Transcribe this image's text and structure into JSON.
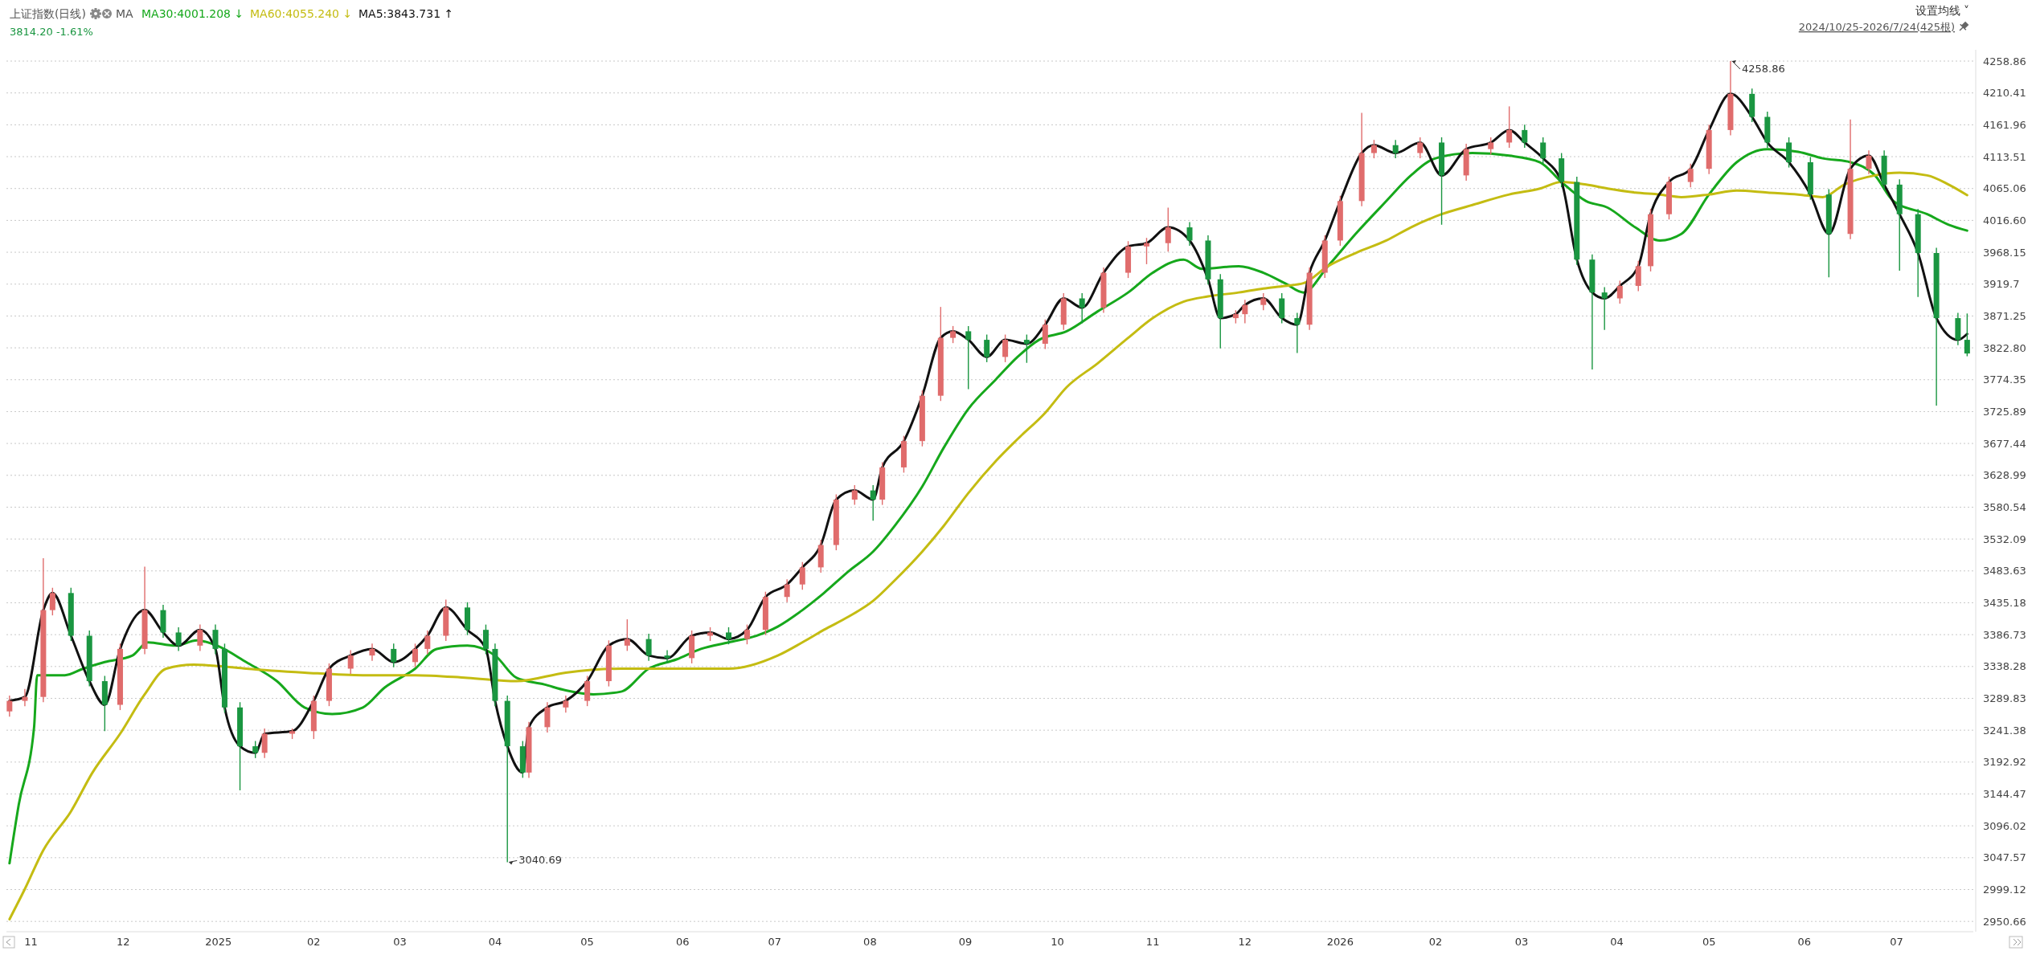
{
  "chart_data": {
    "type": "candlestick",
    "title": "上证指数(日线)",
    "subtitle": "3814.20 -1.61%",
    "annotations": [
      "MA",
      "设置均线 ˅",
      "2024/10/25-2026/7/24(425根)",
      {
        "text": "4258.86",
        "x": "2026-05-08",
        "y": 4258.86
      },
      {
        "text": "3040.69",
        "x": "2025-04-05",
        "y": 3040.69
      }
    ],
    "legend": "top left",
    "grid": "y",
    "xlim": [
      "2024-10-24",
      "2026-07-26"
    ],
    "xticks": [
      {
        "value": "2024-11-01",
        "label": "11"
      },
      {
        "value": "2024-12-01",
        "label": "12"
      },
      {
        "value": "2025-01-01",
        "label": "2025"
      },
      {
        "value": "2025-02-01",
        "label": "02"
      },
      {
        "value": "2025-03-01",
        "label": "03"
      },
      {
        "value": "2025-04-01",
        "label": "04"
      },
      {
        "value": "2025-05-01",
        "label": "05"
      },
      {
        "value": "2025-06-01",
        "label": "06"
      },
      {
        "value": "2025-07-01",
        "label": "07"
      },
      {
        "value": "2025-08-01",
        "label": "08"
      },
      {
        "value": "2025-09-01",
        "label": "09"
      },
      {
        "value": "2025-10-01",
        "label": "10"
      },
      {
        "value": "2025-11-01",
        "label": "11"
      },
      {
        "value": "2025-12-01",
        "label": "12"
      },
      {
        "value": "2026-01-01",
        "label": "2026"
      },
      {
        "value": "2026-02-01",
        "label": "02"
      },
      {
        "value": "2026-03-01",
        "label": "03"
      },
      {
        "value": "2026-04-01",
        "label": "04"
      },
      {
        "value": "2026-05-01",
        "label": "05"
      },
      {
        "value": "2026-06-01",
        "label": "06"
      },
      {
        "value": "2026-07-01",
        "label": "07"
      }
    ],
    "ylim": [
      2935,
      4276
    ],
    "yticks": [
      2950.66,
      2999.12,
      3047.57,
      3096.02,
      3144.47,
      3192.92,
      3241.38,
      3289.83,
      3338.28,
      3386.73,
      3435.18,
      3483.63,
      3532.09,
      3580.54,
      3628.99,
      3677.44,
      3725.89,
      3774.35,
      {
        "value": 3822.8,
        "label": "3822.80"
      },
      3871.25,
      3919.7,
      3968.15,
      {
        "value": 4016.6,
        "label": "4016.60"
      },
      4065.06,
      4113.51,
      4161.96,
      4210.41,
      4258.86
    ],
    "series": [
      {
        "x": [
          "2024-10-25",
          "2024-10-30",
          "2024-11-05",
          "2024-11-08",
          "2024-11-14",
          "2024-11-20",
          "2024-11-25",
          "2024-11-30",
          "2024-12-08",
          "2024-12-14",
          "2024-12-19",
          "2024-12-26",
          "2024-12-31",
          "2025-01-03",
          "2025-01-08",
          "2025-01-13",
          "2025-01-16",
          "2025-01-25",
          "2025-02-01",
          "2025-02-06",
          "2025-02-13",
          "2025-02-20",
          "2025-02-27",
          "2025-03-06",
          "2025-03-10",
          "2025-03-16",
          "2025-03-23",
          "2025-03-29",
          "2025-04-01",
          "2025-04-05",
          "2025-04-10",
          "2025-04-12",
          "2025-04-18",
          "2025-04-24",
          "2025-05-01",
          "2025-05-08",
          "2025-05-14",
          "2025-05-21",
          "2025-05-27",
          "2025-06-04",
          "2025-06-10",
          "2025-06-16",
          "2025-06-22",
          "2025-06-28",
          "2025-07-05",
          "2025-07-10",
          "2025-07-16",
          "2025-07-21",
          "2025-07-27",
          "2025-08-02",
          "2025-08-05",
          "2025-08-12",
          "2025-08-18",
          "2025-08-24",
          "2025-08-28",
          "2025-09-02",
          "2025-09-08",
          "2025-09-14",
          "2025-09-21",
          "2025-09-27",
          "2025-10-03",
          "2025-10-09",
          "2025-10-16",
          "2025-10-24",
          "2025-10-30",
          "2025-11-06",
          "2025-11-13",
          "2025-11-19",
          "2025-11-23",
          "2025-11-28",
          "2025-12-01",
          "2025-12-07",
          "2025-12-13",
          "2025-12-18",
          "2025-12-22",
          "2025-12-27",
          "2026-01-01",
          "2026-01-08",
          "2026-01-12",
          "2026-01-19",
          "2026-01-27",
          "2026-02-03",
          "2026-02-11",
          "2026-02-19",
          "2026-02-25",
          "2026-03-02",
          "2026-03-08",
          "2026-03-14",
          "2026-03-19",
          "2026-03-24",
          "2026-03-28",
          "2026-04-02",
          "2026-04-08",
          "2026-04-12",
          "2026-04-18",
          "2026-04-25",
          "2026-05-01",
          "2026-05-08",
          "2026-05-15",
          "2026-05-20",
          "2026-05-27",
          "2026-06-03",
          "2026-06-09",
          "2026-06-16",
          "2026-06-22",
          "2026-06-27",
          "2026-07-02",
          "2026-07-08",
          "2026-07-14",
          "2026-07-21",
          "2026-07-24"
        ],
        "ohlc": [
          [
            3270,
            3294,
            3262,
            3286
          ],
          [
            3286,
            3304,
            3278,
            3292
          ],
          [
            3292,
            3503,
            3284,
            3424
          ],
          [
            3424,
            3458,
            3416,
            3450
          ],
          [
            3450,
            3458,
            3377,
            3385
          ],
          [
            3385,
            3393,
            3308,
            3316
          ],
          [
            3316,
            3324,
            3240,
            3280
          ],
          [
            3280,
            3373,
            3272,
            3365
          ],
          [
            3365,
            3490,
            3357,
            3424
          ],
          [
            3424,
            3432,
            3382,
            3390
          ],
          [
            3390,
            3398,
            3362,
            3370
          ],
          [
            3370,
            3402,
            3362,
            3394
          ],
          [
            3394,
            3402,
            3357,
            3365
          ],
          [
            3365,
            3373,
            3268,
            3276
          ],
          [
            3276,
            3284,
            3150,
            3217
          ],
          [
            3217,
            3225,
            3199,
            3207
          ],
          [
            3207,
            3244,
            3199,
            3236
          ],
          [
            3236,
            3244,
            3228,
            3240
          ],
          [
            3240,
            3294,
            3228,
            3286
          ],
          [
            3286,
            3343,
            3278,
            3335
          ],
          [
            3335,
            3363,
            3327,
            3355
          ],
          [
            3355,
            3373,
            3347,
            3365
          ],
          [
            3365,
            3373,
            3337,
            3345
          ],
          [
            3345,
            3373,
            3337,
            3365
          ],
          [
            3365,
            3393,
            3357,
            3385
          ],
          [
            3385,
            3440,
            3377,
            3428
          ],
          [
            3428,
            3436,
            3386,
            3394
          ],
          [
            3394,
            3402,
            3357,
            3365
          ],
          [
            3365,
            3373,
            3278,
            3286
          ],
          [
            3286,
            3294,
            3040.69,
            3217
          ],
          [
            3217,
            3225,
            3169,
            3177
          ],
          [
            3177,
            3254,
            3169,
            3246
          ],
          [
            3246,
            3284,
            3238,
            3276
          ],
          [
            3276,
            3294,
            3268,
            3286
          ],
          [
            3286,
            3324,
            3278,
            3316
          ],
          [
            3316,
            3378,
            3308,
            3370
          ],
          [
            3370,
            3410,
            3362,
            3380
          ],
          [
            3380,
            3388,
            3347,
            3355
          ],
          [
            3355,
            3363,
            3343,
            3351
          ],
          [
            3351,
            3393,
            3343,
            3385
          ],
          [
            3385,
            3398,
            3377,
            3390
          ],
          [
            3390,
            3398,
            3372,
            3380
          ],
          [
            3380,
            3402,
            3372,
            3394
          ],
          [
            3394,
            3452,
            3386,
            3444
          ],
          [
            3444,
            3471,
            3436,
            3463
          ],
          [
            3463,
            3497,
            3455,
            3489
          ],
          [
            3489,
            3531,
            3481,
            3523
          ],
          [
            3523,
            3600,
            3515,
            3592
          ],
          [
            3592,
            3614,
            3584,
            3606
          ],
          [
            3606,
            3614,
            3560,
            3592
          ],
          [
            3592,
            3649,
            3584,
            3641
          ],
          [
            3641,
            3689,
            3633,
            3681
          ],
          [
            3681,
            3758,
            3673,
            3750
          ],
          [
            3750,
            3885,
            3742,
            3838
          ],
          [
            3838,
            3856,
            3830,
            3848
          ],
          [
            3848,
            3856,
            3760,
            3835
          ],
          [
            3835,
            3843,
            3801,
            3809
          ],
          [
            3809,
            3843,
            3801,
            3835
          ],
          [
            3835,
            3843,
            3800,
            3829
          ],
          [
            3829,
            3866,
            3821,
            3858
          ],
          [
            3858,
            3906,
            3850,
            3898
          ],
          [
            3898,
            3906,
            3860,
            3884
          ],
          [
            3884,
            3945,
            3876,
            3937
          ],
          [
            3937,
            3985,
            3929,
            3977
          ],
          [
            3977,
            3990,
            3950,
            3982
          ],
          [
            3982,
            4036,
            3969,
            4006
          ],
          [
            4006,
            4014,
            3978,
            3986
          ],
          [
            3986,
            3994,
            3919,
            3927
          ],
          [
            3927,
            3935,
            3822,
            3868
          ],
          [
            3868,
            3880,
            3860,
            3874
          ],
          [
            3874,
            3896,
            3860,
            3888
          ],
          [
            3888,
            3906,
            3880,
            3898
          ],
          [
            3898,
            3906,
            3860,
            3868
          ],
          [
            3868,
            3876,
            3815,
            3858
          ],
          [
            3858,
            3945,
            3850,
            3937
          ],
          [
            3937,
            3994,
            3929,
            3986
          ],
          [
            3986,
            4054,
            3978,
            4046
          ],
          [
            4046,
            4180,
            4038,
            4119
          ],
          [
            4119,
            4139,
            4111,
            4131
          ],
          [
            4131,
            4139,
            4111,
            4119
          ],
          [
            4119,
            4143,
            4111,
            4135
          ],
          [
            4135,
            4143,
            4010,
            4085
          ],
          [
            4085,
            4133,
            4077,
            4125
          ],
          [
            4125,
            4143,
            4117,
            4135
          ],
          [
            4135,
            4190,
            4127,
            4154
          ],
          [
            4154,
            4162,
            4127,
            4135
          ],
          [
            4135,
            4143,
            4103,
            4111
          ],
          [
            4111,
            4119,
            4067,
            4075
          ],
          [
            4075,
            4083,
            3949,
            3957
          ],
          [
            3957,
            3965,
            3790,
            3907
          ],
          [
            3907,
            3915,
            3850,
            3898
          ],
          [
            3898,
            3925,
            3890,
            3917
          ],
          [
            3917,
            3955,
            3909,
            3947
          ],
          [
            3947,
            4034,
            3939,
            4026
          ],
          [
            4026,
            4083,
            4018,
            4075
          ],
          [
            4075,
            4103,
            4067,
            4095
          ],
          [
            4095,
            4162,
            4087,
            4154
          ],
          [
            4154,
            4258.86,
            4146,
            4209
          ],
          [
            4209,
            4217,
            4166,
            4174
          ],
          [
            4174,
            4182,
            4127,
            4135
          ],
          [
            4135,
            4143,
            4097,
            4105
          ],
          [
            4105,
            4113,
            4048,
            4056
          ],
          [
            4056,
            4064,
            3930,
            3996
          ],
          [
            3996,
            4170,
            3988,
            4095
          ],
          [
            4095,
            4123,
            4087,
            4115
          ],
          [
            4115,
            4123,
            4063,
            4071
          ],
          [
            4071,
            4079,
            3940,
            4026
          ],
          [
            4026,
            4034,
            3900,
            3967
          ],
          [
            3967,
            3975,
            3735,
            3868
          ],
          [
            3868,
            3876,
            3827,
            3835
          ],
          [
            3835,
            3875,
            3810,
            3814.2
          ]
        ],
        "colors": [
          "#e06c6c",
          "#e06c6c",
          "#e06c6c",
          "#e06c6c",
          "#1a9641",
          "#1a9641",
          "#1a9641",
          "#e06c6c",
          "#e06c6c",
          "#1a9641",
          "#1a9641",
          "#e06c6c",
          "#1a9641",
          "#1a9641",
          "#1a9641",
          "#1a9641",
          "#e06c6c",
          "#e06c6c",
          "#e06c6c",
          "#e06c6c",
          "#e06c6c",
          "#e06c6c",
          "#1a9641",
          "#e06c6c",
          "#e06c6c",
          "#e06c6c",
          "#1a9641",
          "#1a9641",
          "#1a9641",
          "#1a9641",
          "#1a9641",
          "#e06c6c",
          "#e06c6c",
          "#e06c6c",
          "#e06c6c",
          "#e06c6c",
          "#e06c6c",
          "#1a9641",
          "#1a9641",
          "#e06c6c",
          "#e06c6c",
          "#1a9641",
          "#e06c6c",
          "#e06c6c",
          "#e06c6c",
          "#e06c6c",
          "#e06c6c",
          "#e06c6c",
          "#e06c6c",
          "#1a9641",
          "#e06c6c",
          "#e06c6c",
          "#e06c6c",
          "#e06c6c",
          "#e06c6c",
          "#1a9641",
          "#1a9641",
          "#e06c6c",
          "#1a9641",
          "#e06c6c",
          "#e06c6c",
          "#1a9641",
          "#e06c6c",
          "#e06c6c",
          "#e06c6c",
          "#e06c6c",
          "#1a9641",
          "#1a9641",
          "#1a9641",
          "#e06c6c",
          "#e06c6c",
          "#e06c6c",
          "#1a9641",
          "#1a9641",
          "#e06c6c",
          "#e06c6c",
          "#e06c6c",
          "#e06c6c",
          "#e06c6c",
          "#1a9641",
          "#e06c6c",
          "#1a9641",
          "#e06c6c",
          "#e06c6c",
          "#e06c6c",
          "#1a9641",
          "#1a9641",
          "#1a9641",
          "#1a9641",
          "#1a9641",
          "#1a9641",
          "#e06c6c",
          "#e06c6c",
          "#e06c6c",
          "#e06c6c",
          "#e06c6c",
          "#e06c6c",
          "#e06c6c",
          "#1a9641",
          "#1a9641",
          "#1a9641",
          "#1a9641",
          "#1a9641",
          "#e06c6c",
          "#e06c6c",
          "#1a9641",
          "#1a9641",
          "#1a9641",
          "#1a9641",
          "#1a9641",
          "#1a9641"
        ]
      },
      {
        "type": "line",
        "name": "MA30:4001.208 ↓",
        "color": "#16a81c",
        "x": [
          "2024-10-25",
          "2024-10-28",
          "2024-11-02",
          "2024-11-03",
          "2024-11-12",
          "2024-11-18",
          "2024-11-25",
          "2024-12-04",
          "2024-12-09",
          "2024-12-18",
          "2024-12-25",
          "2025-01-01",
          "2025-01-10",
          "2025-01-20",
          "2025-01-29",
          "2025-02-07",
          "2025-02-17",
          "2025-02-24",
          "2025-03-06",
          "2025-03-13",
          "2025-03-23",
          "2025-04-01",
          "2025-04-08",
          "2025-04-17",
          "2025-04-24",
          "2025-05-03",
          "2025-05-12",
          "2025-05-21",
          "2025-05-30",
          "2025-06-07",
          "2025-06-16",
          "2025-06-25",
          "2025-07-02",
          "2025-07-10",
          "2025-07-17",
          "2025-07-25",
          "2025-08-02",
          "2025-08-09",
          "2025-08-18",
          "2025-08-25",
          "2025-09-02",
          "2025-09-11",
          "2025-09-18",
          "2025-09-25",
          "2025-10-04",
          "2025-10-14",
          "2025-10-24",
          "2025-11-01",
          "2025-11-11",
          "2025-11-17",
          "2025-11-29",
          "2025-12-07",
          "2025-12-14",
          "2025-12-20",
          "2025-12-28",
          "2026-01-06",
          "2026-01-16",
          "2026-01-24",
          "2026-02-01",
          "2026-02-13",
          "2026-02-25",
          "2026-03-07",
          "2026-03-14",
          "2026-03-22",
          "2026-03-29",
          "2026-04-07",
          "2026-04-15",
          "2026-04-22",
          "2026-05-01",
          "2026-05-10",
          "2026-05-20",
          "2026-05-30",
          "2026-06-07",
          "2026-06-16",
          "2026-06-24",
          "2026-06-30",
          "2026-07-11",
          "2026-07-18",
          "2026-07-24"
        ],
        "values": [
          3039,
          3128,
          3246,
          3325,
          3325,
          3335,
          3345,
          3355,
          3375,
          3370,
          3378,
          3369,
          3345,
          3316,
          3276,
          3266,
          3276,
          3306,
          3335,
          3365,
          3370,
          3355,
          3321,
          3311,
          3302,
          3296,
          3300,
          3335,
          3349,
          3365,
          3375,
          3385,
          3399,
          3424,
          3450,
          3483,
          3513,
          3552,
          3612,
          3671,
          3730,
          3775,
          3809,
          3835,
          3848,
          3878,
          3907,
          3937,
          3957,
          3943,
          3947,
          3937,
          3921,
          3907,
          3947,
          3996,
          4046,
          4085,
          4111,
          4119,
          4115,
          4105,
          4075,
          4046,
          4036,
          4006,
          3986,
          3996,
          4056,
          4105,
          4125,
          4121,
          4111,
          4105,
          4085,
          4046,
          4026,
          4010,
          4001
        ]
      },
      {
        "type": "line",
        "name": "MA60:4055.240 ↓",
        "color": "#c4bc12",
        "x": [
          "2024-10-25",
          "2024-10-30",
          "2024-11-05",
          "2024-11-14",
          "2024-11-21",
          "2024-11-30",
          "2024-12-08",
          "2024-12-15",
          "2024-12-24",
          "2025-01-01",
          "2025-01-10",
          "2025-01-29",
          "2025-02-17",
          "2025-03-06",
          "2025-03-23",
          "2025-04-08",
          "2025-04-24",
          "2025-05-12",
          "2025-05-30",
          "2025-06-16",
          "2025-07-02",
          "2025-07-10",
          "2025-07-17",
          "2025-07-25",
          "2025-08-02",
          "2025-08-09",
          "2025-08-18",
          "2025-08-25",
          "2025-09-02",
          "2025-09-11",
          "2025-09-18",
          "2025-09-27",
          "2025-10-04",
          "2025-10-14",
          "2025-10-24",
          "2025-11-01",
          "2025-11-11",
          "2025-11-19",
          "2025-11-29",
          "2025-12-07",
          "2025-12-14",
          "2025-12-20",
          "2025-12-28",
          "2026-01-06",
          "2026-01-16",
          "2026-01-24",
          "2026-02-03",
          "2026-02-13",
          "2026-02-25",
          "2026-03-07",
          "2026-03-14",
          "2026-03-22",
          "2026-03-29",
          "2026-04-07",
          "2026-04-15",
          "2026-04-22",
          "2026-05-01",
          "2026-05-10",
          "2026-05-20",
          "2026-05-30",
          "2026-06-07",
          "2026-06-14",
          "2026-06-24",
          "2026-07-02",
          "2026-07-11",
          "2026-07-18",
          "2026-07-24"
        ],
        "values": [
          2954,
          3000,
          3059,
          3118,
          3177,
          3236,
          3296,
          3335,
          3341,
          3339,
          3335,
          3329,
          3325,
          3325,
          3321,
          3316,
          3329,
          3335,
          3335,
          3335,
          3355,
          3375,
          3394,
          3414,
          3438,
          3469,
          3513,
          3552,
          3602,
          3651,
          3684,
          3724,
          3763,
          3799,
          3838,
          3868,
          3893,
          3901,
          3907,
          3913,
          3917,
          3921,
          3947,
          3967,
          3986,
          4006,
          4026,
          4040,
          4056,
          4065,
          4075,
          4071,
          4065,
          4059,
          4056,
          4052,
          4056,
          4062,
          4059,
          4056,
          4052,
          4071,
          4085,
          4089,
          4085,
          4071,
          4055
        ]
      },
      {
        "type": "line",
        "name": "MA5:3843.731 ↑",
        "color": "#111111",
        "x": [
          "2024-10-25",
          "2024-10-30",
          "2024-11-05",
          "2024-11-08",
          "2024-11-14",
          "2024-11-20",
          "2024-11-25",
          "2024-11-30",
          "2024-12-08",
          "2024-12-14",
          "2024-12-19",
          "2024-12-26",
          "2024-12-31",
          "2025-01-03",
          "2025-01-08",
          "2025-01-13",
          "2025-01-16",
          "2025-01-25",
          "2025-02-01",
          "2025-02-06",
          "2025-02-13",
          "2025-02-20",
          "2025-02-27",
          "2025-03-06",
          "2025-03-10",
          "2025-03-16",
          "2025-03-23",
          "2025-03-29",
          "2025-04-01",
          "2025-04-05",
          "2025-04-10",
          "2025-04-12",
          "2025-04-18",
          "2025-04-24",
          "2025-05-01",
          "2025-05-08",
          "2025-05-14",
          "2025-05-21",
          "2025-05-27",
          "2025-06-04",
          "2025-06-10",
          "2025-06-16",
          "2025-06-22",
          "2025-06-28",
          "2025-07-05",
          "2025-07-10",
          "2025-07-16",
          "2025-07-21",
          "2025-07-27",
          "2025-08-02",
          "2025-08-05",
          "2025-08-12",
          "2025-08-18",
          "2025-08-24",
          "2025-08-28",
          "2025-09-02",
          "2025-09-08",
          "2025-09-14",
          "2025-09-21",
          "2025-09-27",
          "2025-10-03",
          "2025-10-09",
          "2025-10-16",
          "2025-10-24",
          "2025-10-30",
          "2025-11-06",
          "2025-11-13",
          "2025-11-19",
          "2025-11-23",
          "2025-11-28",
          "2025-12-01",
          "2025-12-07",
          "2025-12-13",
          "2025-12-18",
          "2025-12-22",
          "2025-12-27",
          "2026-01-01",
          "2026-01-08",
          "2026-01-12",
          "2026-01-19",
          "2026-01-27",
          "2026-02-03",
          "2026-02-11",
          "2026-02-19",
          "2026-02-25",
          "2026-03-02",
          "2026-03-08",
          "2026-03-14",
          "2026-03-19",
          "2026-03-24",
          "2026-03-28",
          "2026-04-02",
          "2026-04-08",
          "2026-04-12",
          "2026-04-18",
          "2026-04-25",
          "2026-05-01",
          "2026-05-08",
          "2026-05-15",
          "2026-05-20",
          "2026-05-27",
          "2026-06-03",
          "2026-06-09",
          "2026-06-16",
          "2026-06-22",
          "2026-06-27",
          "2026-07-02",
          "2026-07-08",
          "2026-07-14",
          "2026-07-21",
          "2026-07-24"
        ],
        "values": [
          3286,
          3292,
          3424,
          3450,
          3385,
          3316,
          3280,
          3365,
          3424,
          3390,
          3370,
          3394,
          3365,
          3276,
          3217,
          3207,
          3236,
          3240,
          3286,
          3335,
          3355,
          3365,
          3345,
          3365,
          3385,
          3428,
          3394,
          3365,
          3286,
          3217,
          3177,
          3246,
          3276,
          3286,
          3316,
          3370,
          3380,
          3355,
          3351,
          3385,
          3390,
          3380,
          3394,
          3444,
          3463,
          3489,
          3523,
          3592,
          3606,
          3592,
          3641,
          3681,
          3750,
          3838,
          3848,
          3835,
          3809,
          3835,
          3829,
          3858,
          3898,
          3884,
          3937,
          3977,
          3982,
          4006,
          3986,
          3927,
          3868,
          3874,
          3888,
          3898,
          3868,
          3858,
          3937,
          3986,
          4046,
          4119,
          4131,
          4119,
          4135,
          4085,
          4125,
          4135,
          4154,
          4135,
          4111,
          4075,
          3957,
          3907,
          3898,
          3917,
          3947,
          4026,
          4075,
          4095,
          4154,
          4209,
          4174,
          4135,
          4105,
          4056,
          3996,
          4095,
          4115,
          4071,
          4026,
          3967,
          3868,
          3835,
          3844
        ]
      }
    ]
  }
}
